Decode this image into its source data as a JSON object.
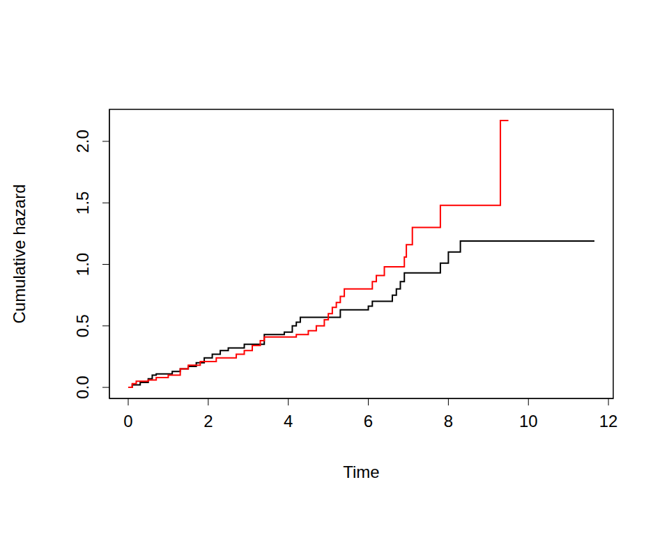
{
  "chart_data": {
    "type": "line",
    "line_style": "steps",
    "x_label": "Time",
    "y_label": "Cumulative hazard",
    "xlim": [
      -0.47,
      12.12
    ],
    "ylim": [
      -0.09,
      2.26
    ],
    "xticks": [
      0,
      2,
      4,
      6,
      8,
      10,
      12
    ],
    "yticks": [
      {
        "value": 0,
        "label": "0.0"
      },
      {
        "value": 0.5,
        "label": "0.5"
      },
      {
        "value": 1,
        "label": "1.0"
      },
      {
        "value": 1.5,
        "label": "1.5"
      },
      {
        "value": 2,
        "label": "2.0"
      }
    ],
    "grid": false,
    "series": [
      {
        "color": "#000000",
        "x": [
          0,
          0.1,
          0.3,
          0.5,
          0.6,
          0.7,
          1.1,
          1.3,
          1.5,
          1.7,
          1.9,
          2.1,
          2.3,
          2.5,
          2.9,
          3.4,
          3.9,
          4.1,
          4.2,
          4.3,
          5.3,
          6.0,
          6.1,
          6.6,
          6.7,
          6.8,
          6.9,
          7.8,
          8.0,
          8.3,
          11.65
        ],
        "values": [
          0,
          0.02,
          0.04,
          0.07,
          0.1,
          0.11,
          0.13,
          0.15,
          0.17,
          0.2,
          0.24,
          0.27,
          0.3,
          0.32,
          0.35,
          0.43,
          0.45,
          0.5,
          0.53,
          0.57,
          0.63,
          0.66,
          0.7,
          0.75,
          0.8,
          0.86,
          0.93,
          1.01,
          1.1,
          1.19,
          1.19
        ]
      },
      {
        "color": "#ff0000",
        "x": [
          0,
          0.1,
          0.2,
          0.5,
          0.7,
          1.0,
          1.3,
          1.5,
          1.8,
          2.2,
          2.7,
          2.9,
          3.1,
          3.3,
          3.4,
          4.2,
          4.5,
          4.7,
          4.9,
          5.0,
          5.1,
          5.2,
          5.3,
          5.4,
          6.1,
          6.2,
          6.4,
          6.9,
          6.95,
          7.1,
          7.8,
          9.3,
          9.5
        ],
        "values": [
          0,
          0.03,
          0.05,
          0.06,
          0.08,
          0.1,
          0.15,
          0.18,
          0.21,
          0.24,
          0.27,
          0.3,
          0.34,
          0.38,
          0.41,
          0.43,
          0.46,
          0.5,
          0.55,
          0.6,
          0.65,
          0.69,
          0.74,
          0.8,
          0.86,
          0.91,
          0.98,
          1.06,
          1.16,
          1.3,
          1.48,
          2.17,
          2.17
        ]
      }
    ]
  }
}
